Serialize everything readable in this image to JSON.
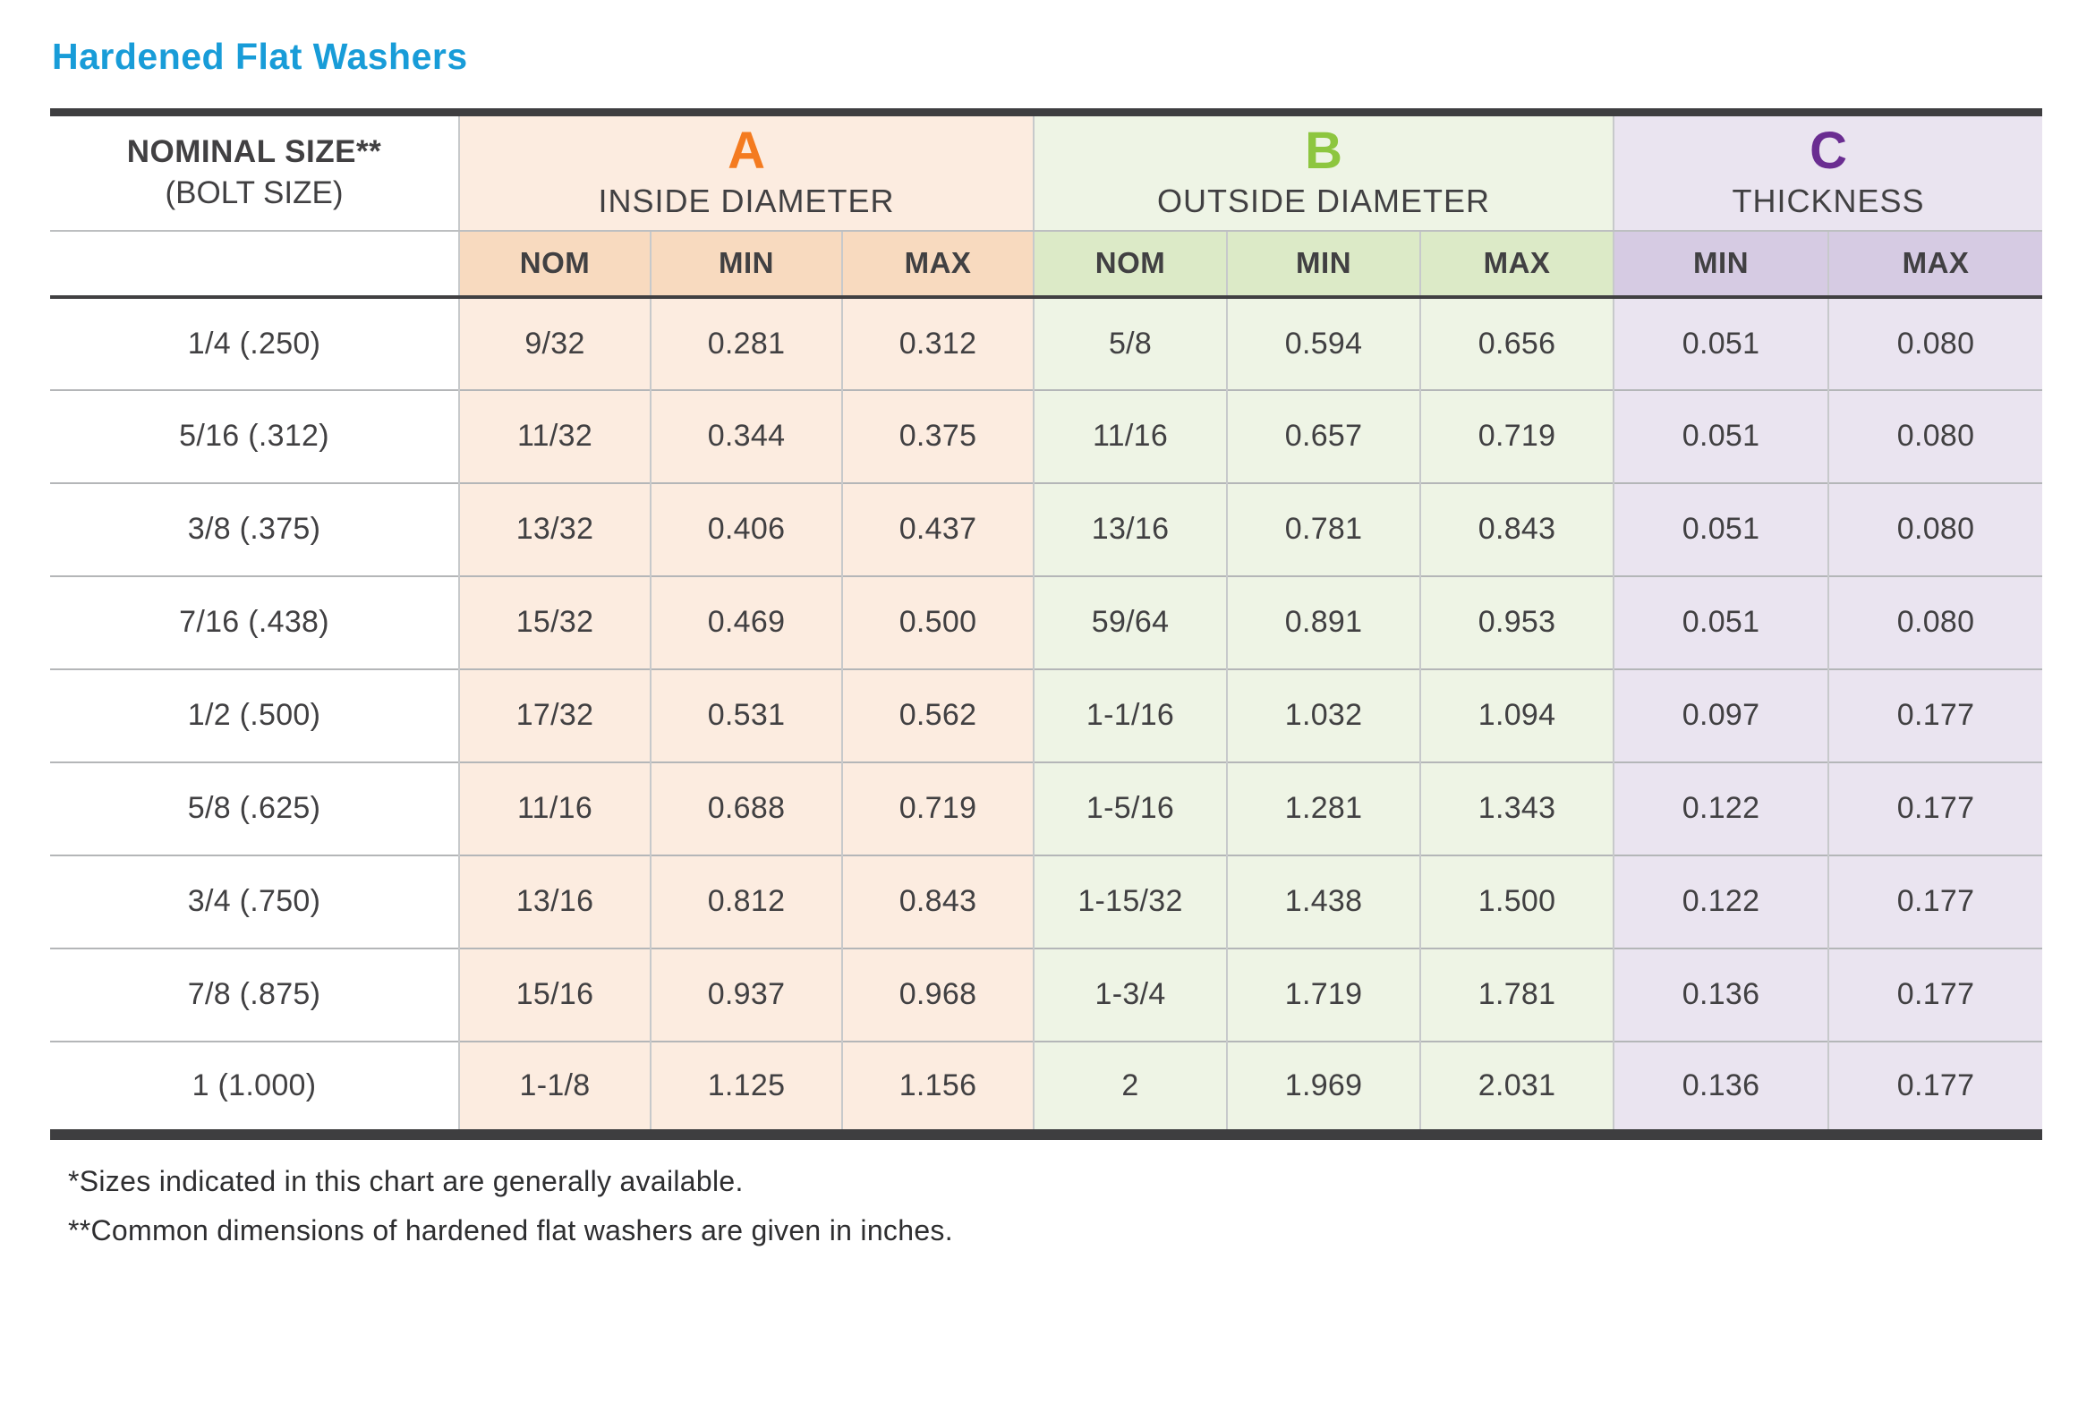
{
  "title": "Hardened Flat Washers",
  "header": {
    "nominal_line1": "NOMINAL SIZE**",
    "nominal_line2": "(BOLT SIZE)",
    "groups": [
      {
        "letter": "A",
        "label": "INSIDE DIAMETER",
        "subcols": [
          "NOM",
          "MIN",
          "MAX"
        ]
      },
      {
        "letter": "B",
        "label": "OUTSIDE DIAMETER",
        "subcols": [
          "NOM",
          "MIN",
          "MAX"
        ]
      },
      {
        "letter": "C",
        "label": "THICKNESS",
        "subcols": [
          "MIN",
          "MAX"
        ]
      }
    ]
  },
  "footnotes": [
    "*Sizes indicated in this chart are generally available.",
    "**Common dimensions of hardened flat washers are given in inches."
  ],
  "colors": {
    "title": "#189cd8",
    "letter_a": "#f47b20",
    "letter_b": "#8dc63f",
    "letter_c": "#6a2d91",
    "a_bg": "#fcece0",
    "a_subheader_bg": "#f8dabf",
    "b_bg": "#eef4e5",
    "b_subheader_bg": "#dceac7",
    "c_bg": "#eae4f0",
    "c_subheader_bg": "#d6cbe3",
    "text": "#414042"
  },
  "chart_data": {
    "type": "table",
    "title": "Hardened Flat Washers",
    "units": "inches",
    "column_groups": [
      "NOMINAL SIZE** (BOLT SIZE)",
      "A - INSIDE DIAMETER",
      "B - OUTSIDE DIAMETER",
      "C - THICKNESS"
    ],
    "columns": [
      "NOMINAL SIZE (BOLT SIZE)",
      "A NOM",
      "A MIN",
      "A MAX",
      "B NOM",
      "B MIN",
      "B MAX",
      "C MIN",
      "C MAX"
    ],
    "rows": [
      [
        "1/4 (.250)",
        "9/32",
        "0.281",
        "0.312",
        "5/8",
        "0.594",
        "0.656",
        "0.051",
        "0.080"
      ],
      [
        "5/16 (.312)",
        "11/32",
        "0.344",
        "0.375",
        "11/16",
        "0.657",
        "0.719",
        "0.051",
        "0.080"
      ],
      [
        "3/8 (.375)",
        "13/32",
        "0.406",
        "0.437",
        "13/16",
        "0.781",
        "0.843",
        "0.051",
        "0.080"
      ],
      [
        "7/16 (.438)",
        "15/32",
        "0.469",
        "0.500",
        "59/64",
        "0.891",
        "0.953",
        "0.051",
        "0.080"
      ],
      [
        "1/2 (.500)",
        "17/32",
        "0.531",
        "0.562",
        "1-1/16",
        "1.032",
        "1.094",
        "0.097",
        "0.177"
      ],
      [
        "5/8 (.625)",
        "11/16",
        "0.688",
        "0.719",
        "1-5/16",
        "1.281",
        "1.343",
        "0.122",
        "0.177"
      ],
      [
        "3/4 (.750)",
        "13/16",
        "0.812",
        "0.843",
        "1-15/32",
        "1.438",
        "1.500",
        "0.122",
        "0.177"
      ],
      [
        "7/8 (.875)",
        "15/16",
        "0.937",
        "0.968",
        "1-3/4",
        "1.719",
        "1.781",
        "0.136",
        "0.177"
      ],
      [
        "1 (1.000)",
        "1-1/8",
        "1.125",
        "1.156",
        "2",
        "1.969",
        "2.031",
        "0.136",
        "0.177"
      ]
    ]
  }
}
